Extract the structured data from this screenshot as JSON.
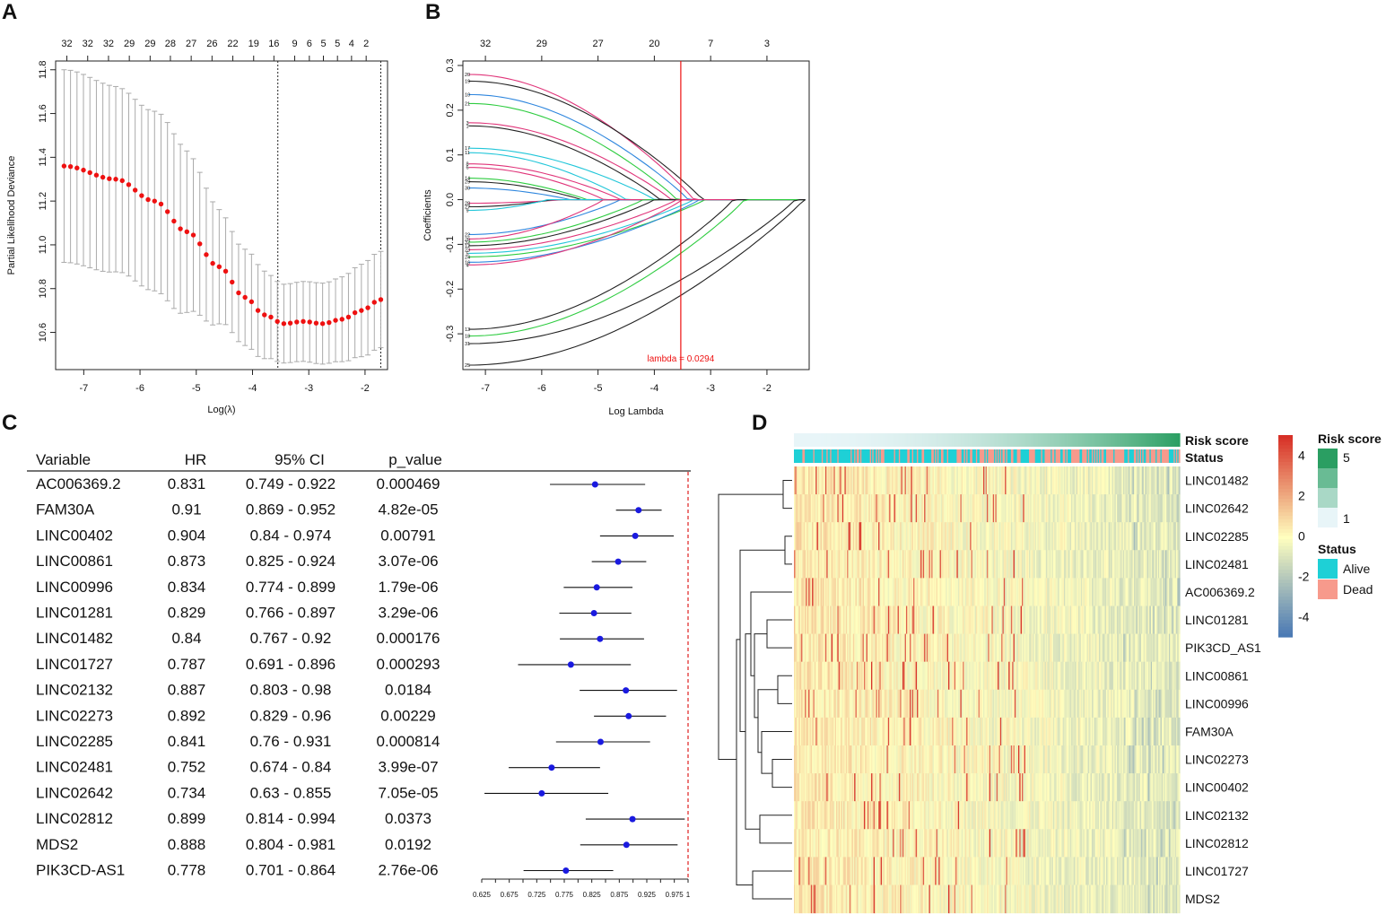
{
  "panels": {
    "a": "A",
    "b": "B",
    "c": "C",
    "d": "D"
  },
  "colors": {
    "cv_point": "#ee1111",
    "cv_error": "#aaaaaa",
    "lambda_line": "#ee1111",
    "forest_point": "#1a1adf",
    "forest_ref": "#e02020",
    "alive": "#1ed0d6",
    "dead": "#f79a8c",
    "heat_high": "#d73027",
    "heat_mid": "#ffffbf",
    "heat_low": "#4575b4",
    "risk_low": "#e8f5f8",
    "risk_high": "#2a9e62"
  },
  "chart_data": [
    {
      "panel": "A",
      "type": "line",
      "subtype": "cross-validation error-bar plot",
      "xlabel": "Log(λ)",
      "ylabel": "Partial Likelihood Deviance",
      "xlim": [
        -7.5,
        -1.6
      ],
      "ylim": [
        10.43,
        11.84
      ],
      "x_ticks": [
        -7,
        -6,
        -5,
        -4,
        -3,
        -2
      ],
      "y_ticks": [
        "10.6",
        "10.8",
        "11.0",
        "11.2",
        "11.4",
        "11.6",
        "11.8"
      ],
      "top_ticks": [
        "32",
        "32",
        "32",
        "29",
        "29",
        "28",
        "27",
        "26",
        "22",
        "19",
        "16",
        "9",
        "6",
        "5",
        "5",
        "4",
        "2"
      ],
      "top_tick_x": [
        -7.3,
        -6.93,
        -6.56,
        -6.19,
        -5.82,
        -5.46,
        -5.09,
        -4.72,
        -4.35,
        -3.98,
        -3.62,
        -3.25,
        -2.99,
        -2.74,
        -2.49,
        -2.24,
        -1.98
      ],
      "lambda_min_log": -3.55,
      "lambda_1se_log": -1.72,
      "n_points": 50,
      "x_start": -7.35,
      "x_end": -1.72,
      "curve_anchors": [
        [
          0,
          11.36
        ],
        [
          8,
          11.3
        ],
        [
          14,
          11.2
        ],
        [
          19,
          11.06
        ],
        [
          24,
          10.9
        ],
        [
          28,
          10.76
        ],
        [
          31,
          10.68
        ],
        [
          34,
          10.64
        ],
        [
          37,
          10.65
        ],
        [
          40,
          10.64
        ],
        [
          43,
          10.66
        ],
        [
          46,
          10.7
        ],
        [
          49,
          10.75
        ]
      ],
      "error_anchors": [
        [
          0,
          0.44
        ],
        [
          15,
          0.41
        ],
        [
          28,
          0.22
        ],
        [
          34,
          0.18
        ],
        [
          40,
          0.185
        ],
        [
          49,
          0.22
        ]
      ]
    },
    {
      "panel": "B",
      "type": "line",
      "subtype": "lasso coefficient paths",
      "xlabel": "Log Lambda",
      "ylabel": "Coefficients",
      "xlim": [
        -7.4,
        -1.25
      ],
      "ylim": [
        -0.38,
        0.31
      ],
      "x_ticks": [
        -7,
        -6,
        -5,
        -4,
        -3,
        -2
      ],
      "y_ticks": [
        "-0.3",
        "-0.2",
        "-0.1",
        "0.0",
        "0.1",
        "0.2",
        "0.3"
      ],
      "top_ticks": [
        "32",
        "29",
        "27",
        "20",
        "7",
        "3"
      ],
      "top_tick_x": [
        -7.0,
        -6.0,
        -5.0,
        -4.0,
        -3.0,
        -2.0
      ],
      "lambda_log": -3.53,
      "lambda_label": "lambda = 0.0294",
      "series": [
        {
          "label": "20",
          "start": 0.28,
          "zero_at": -3.3,
          "color": "#e0357a"
        },
        {
          "label": "19",
          "start": 0.265,
          "zero_at": -3.15,
          "color": "#222222"
        },
        {
          "label": "10",
          "start": 0.235,
          "zero_at": -3.4,
          "color": "#2e86de"
        },
        {
          "label": "21",
          "start": 0.215,
          "zero_at": -3.6,
          "color": "#2ecc40"
        },
        {
          "label": "3",
          "start": 0.172,
          "zero_at": -3.7,
          "color": "#e0357a"
        },
        {
          "label": "1",
          "start": 0.165,
          "zero_at": -3.9,
          "color": "#222222"
        },
        {
          "label": "17",
          "start": 0.115,
          "zero_at": -4.0,
          "color": "#21c6d9"
        },
        {
          "label": "11",
          "start": 0.105,
          "zero_at": -4.5,
          "color": "#21c6d9"
        },
        {
          "label": "8",
          "start": 0.08,
          "zero_at": -4.6,
          "color": "#e0357a"
        },
        {
          "label": "6",
          "start": 0.072,
          "zero_at": -4.9,
          "color": "#e0357a"
        },
        {
          "label": "14",
          "start": 0.048,
          "zero_at": -5.2,
          "color": "#2ecc40"
        },
        {
          "label": "29",
          "start": 0.04,
          "zero_at": -5.3,
          "color": "#222222"
        },
        {
          "label": "30",
          "start": 0.026,
          "zero_at": -5.5,
          "color": "#2e86de"
        },
        {
          "label": "28",
          "start": -0.008,
          "zero_at": -5.6,
          "color": "#e0357a"
        },
        {
          "label": "27",
          "start": -0.016,
          "zero_at": -5.8,
          "color": "#222222"
        },
        {
          "label": "9",
          "start": -0.024,
          "zero_at": -5.9,
          "color": "#21c6d9"
        },
        {
          "label": "22",
          "start": -0.078,
          "zero_at": -4.6,
          "color": "#2e86de"
        },
        {
          "label": "26",
          "start": -0.088,
          "zero_at": -4.9,
          "color": "#e0357a"
        },
        {
          "label": "32",
          "start": -0.095,
          "zero_at": -4.2,
          "color": "#2ecc40"
        },
        {
          "label": "12",
          "start": -0.103,
          "zero_at": -4.0,
          "color": "#222222"
        },
        {
          "label": "23",
          "start": -0.112,
          "zero_at": -3.6,
          "color": "#e0357a"
        },
        {
          "label": "5",
          "start": -0.12,
          "zero_at": -3.3,
          "color": "#21c6d9"
        },
        {
          "label": "24",
          "start": -0.128,
          "zero_at": -3.1,
          "color": "#2ecc40"
        },
        {
          "label": "16",
          "start": -0.14,
          "zero_at": -3.2,
          "color": "#2e86de"
        },
        {
          "label": "4",
          "start": -0.146,
          "zero_at": -3.5,
          "color": "#e0357a"
        },
        {
          "label": "13",
          "start": -0.29,
          "zero_at": -2.6,
          "color": "#222222"
        },
        {
          "label": "18",
          "start": -0.305,
          "zero_at": -2.4,
          "color": "#2ecc40"
        },
        {
          "label": "31",
          "start": -0.322,
          "zero_at": -1.5,
          "color": "#222222"
        },
        {
          "label": "25",
          "start": -0.37,
          "zero_at": -1.35,
          "color": "#222222"
        }
      ]
    },
    {
      "panel": "C",
      "type": "scatter",
      "subtype": "forest plot",
      "headers": {
        "variable": "Variable",
        "hr": "HR",
        "ci": "95% CI",
        "p": "p_value"
      },
      "xlim": [
        0.625,
        1.0
      ],
      "ref_line": 1.0,
      "x_ticks": [
        "0.625",
        "0.65",
        "0.675",
        "0.7",
        "0.725",
        "0.75",
        "0.775",
        "0.8",
        "0.825",
        "0.85",
        "0.875",
        "0.9",
        "0.925",
        "0.95",
        "0.975",
        "1"
      ],
      "x_tick_labels": [
        "0.625",
        "",
        "0.675",
        "",
        "0.725",
        "",
        "0.775",
        "",
        "0.825",
        "",
        "0.875",
        "",
        "0.925",
        "",
        "0.975",
        "1"
      ],
      "rows": [
        {
          "variable": "AC006369.2",
          "hr": "0.831",
          "ci": "0.749 - 0.922",
          "p": "0.000469",
          "hr_v": 0.831,
          "lo": 0.749,
          "hi": 0.922
        },
        {
          "variable": "FAM30A",
          "hr": "0.91",
          "ci": "0.869 - 0.952",
          "p": "4.82e-05",
          "hr_v": 0.91,
          "lo": 0.869,
          "hi": 0.952
        },
        {
          "variable": "LINC00402",
          "hr": "0.904",
          "ci": "0.84 - 0.974",
          "p": "0.00791",
          "hr_v": 0.904,
          "lo": 0.84,
          "hi": 0.974
        },
        {
          "variable": "LINC00861",
          "hr": "0.873",
          "ci": "0.825 - 0.924",
          "p": "3.07e-06",
          "hr_v": 0.873,
          "lo": 0.825,
          "hi": 0.924
        },
        {
          "variable": "LINC00996",
          "hr": "0.834",
          "ci": "0.774 - 0.899",
          "p": "1.79e-06",
          "hr_v": 0.834,
          "lo": 0.774,
          "hi": 0.899
        },
        {
          "variable": "LINC01281",
          "hr": "0.829",
          "ci": "0.766 - 0.897",
          "p": "3.29e-06",
          "hr_v": 0.829,
          "lo": 0.766,
          "hi": 0.897
        },
        {
          "variable": "LINC01482",
          "hr": "0.84",
          "ci": "0.767 - 0.92",
          "p": "0.000176",
          "hr_v": 0.84,
          "lo": 0.767,
          "hi": 0.92
        },
        {
          "variable": "LINC01727",
          "hr": "0.787",
          "ci": "0.691 - 0.896",
          "p": "0.000293",
          "hr_v": 0.787,
          "lo": 0.691,
          "hi": 0.896
        },
        {
          "variable": "LINC02132",
          "hr": "0.887",
          "ci": "0.803 - 0.98",
          "p": "0.0184",
          "hr_v": 0.887,
          "lo": 0.803,
          "hi": 0.98
        },
        {
          "variable": "LINC02273",
          "hr": "0.892",
          "ci": "0.829 - 0.96",
          "p": "0.00229",
          "hr_v": 0.892,
          "lo": 0.829,
          "hi": 0.96
        },
        {
          "variable": "LINC02285",
          "hr": "0.841",
          "ci": "0.76 - 0.931",
          "p": "0.000814",
          "hr_v": 0.841,
          "lo": 0.76,
          "hi": 0.931
        },
        {
          "variable": "LINC02481",
          "hr": "0.752",
          "ci": "0.674 - 0.84",
          "p": "3.99e-07",
          "hr_v": 0.752,
          "lo": 0.674,
          "hi": 0.84
        },
        {
          "variable": "LINC02642",
          "hr": "0.734",
          "ci": "0.63 - 0.855",
          "p": "7.05e-05",
          "hr_v": 0.734,
          "lo": 0.63,
          "hi": 0.855
        },
        {
          "variable": "LINC02812",
          "hr": "0.899",
          "ci": "0.814 - 0.994",
          "p": "0.0373",
          "hr_v": 0.899,
          "lo": 0.814,
          "hi": 0.994
        },
        {
          "variable": "MDS2",
          "hr": "0.888",
          "ci": "0.804 - 0.981",
          "p": "0.0192",
          "hr_v": 0.888,
          "lo": 0.804,
          "hi": 0.981
        },
        {
          "variable": "PIK3CD-AS1",
          "hr": "0.778",
          "ci": "0.701 - 0.864",
          "p": "2.76e-06",
          "hr_v": 0.778,
          "lo": 0.701,
          "hi": 0.864
        }
      ]
    },
    {
      "panel": "D",
      "type": "heatmap",
      "annotation_labels": {
        "risk": "Risk score",
        "status": "Status"
      },
      "rows": [
        "LINC01482",
        "LINC02642",
        "LINC02285",
        "LINC02481",
        "AC006369.2",
        "LINC01281",
        "PIK3CD_AS1",
        "LINC00861",
        "LINC00996",
        "FAM30A",
        "LINC02273",
        "LINC00402",
        "LINC02132",
        "LINC02812",
        "LINC01727",
        "MDS2"
      ],
      "n_columns": 320,
      "color_scale": {
        "min": -5,
        "max": 5,
        "ticks": [
          "4",
          "2",
          "0",
          "-2",
          "-4"
        ]
      },
      "legend": {
        "risk_title": "Risk score",
        "risk_ticks": [
          "5",
          "1"
        ],
        "status_title": "Status",
        "status_items": [
          "Alive",
          "Dead"
        ]
      },
      "dendrogram": "hierarchical clustering of rows"
    }
  ]
}
